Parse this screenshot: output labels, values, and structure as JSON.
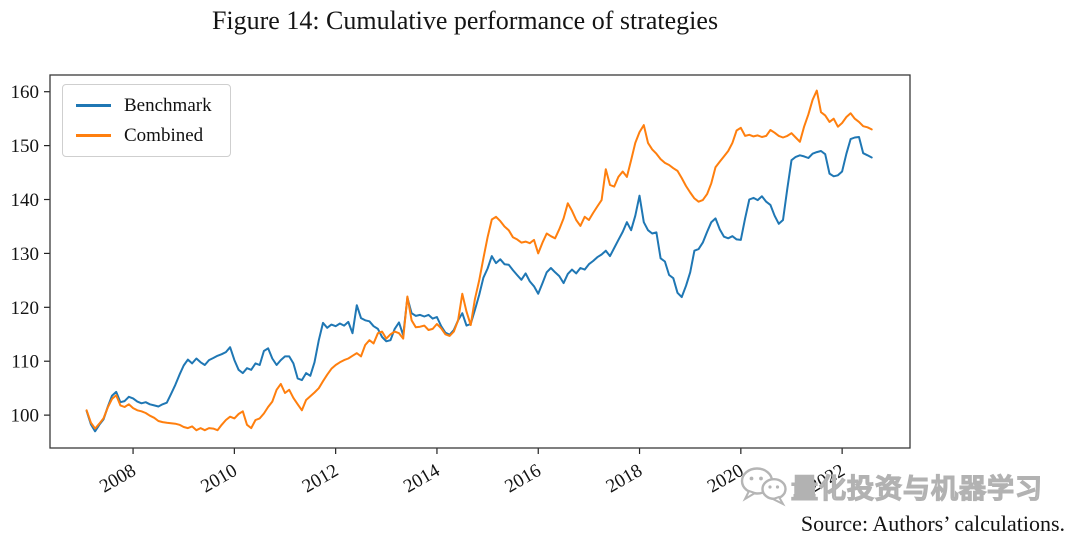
{
  "figure": {
    "title": "Figure 14: Cumulative performance of strategies",
    "source_note": "Source: Authors’ calculations.",
    "watermark_text": "量化投资与机器学习"
  },
  "chart_data": {
    "type": "line",
    "title": "Figure 14: Cumulative performance of strategies",
    "xlabel": "",
    "ylabel": "",
    "grid": false,
    "legend_position": "upper left",
    "xlim": [
      2006.36,
      2023.34
    ],
    "ylim": [
      93.9,
      163.1
    ],
    "x_ticks": [
      2008,
      2010,
      2012,
      2014,
      2016,
      2018,
      2020,
      2022
    ],
    "x_tick_rotation": 30,
    "y_ticks": [
      100,
      110,
      120,
      130,
      140,
      150,
      160
    ],
    "x_start": 2007.0833,
    "x_step": 0.0833333,
    "series": [
      {
        "name": "Benchmark",
        "color": "#1f77b4",
        "values": [
          100.8,
          98.3,
          97.0,
          98.2,
          99.2,
          101.5,
          103.6,
          104.3,
          102.4,
          102.6,
          103.4,
          103.1,
          102.5,
          102.2,
          102.4,
          102.0,
          101.8,
          101.6,
          102.0,
          102.3,
          103.9,
          105.6,
          107.5,
          109.2,
          110.3,
          109.6,
          110.5,
          109.8,
          109.3,
          110.2,
          110.6,
          111.0,
          111.3,
          111.7,
          112.6,
          110.2,
          108.4,
          107.8,
          108.7,
          108.4,
          109.6,
          109.3,
          111.9,
          112.4,
          110.5,
          109.3,
          110.2,
          110.9,
          110.9,
          109.6,
          106.8,
          106.5,
          107.8,
          107.3,
          109.8,
          113.9,
          117.1,
          116.2,
          116.8,
          116.5,
          117.0,
          116.6,
          117.3,
          115.2,
          120.4,
          118.0,
          117.6,
          117.4,
          116.5,
          116.0,
          114.5,
          113.7,
          113.9,
          116.0,
          117.2,
          114.8,
          121.8,
          118.9,
          118.4,
          118.6,
          118.3,
          118.6,
          117.9,
          118.2,
          116.5,
          115.3,
          114.9,
          115.8,
          117.6,
          118.9,
          116.6,
          116.9,
          119.5,
          122.3,
          125.5,
          127.2,
          129.5,
          128.2,
          128.9,
          128.0,
          127.9,
          126.9,
          126.0,
          125.1,
          126.3,
          124.8,
          123.9,
          122.5,
          124.5,
          126.5,
          127.3,
          126.5,
          125.8,
          124.5,
          126.2,
          127.0,
          126.3,
          127.3,
          127.0,
          128.0,
          128.6,
          129.3,
          129.8,
          130.5,
          129.5,
          131.0,
          132.5,
          134.0,
          135.8,
          134.3,
          137.0,
          140.7,
          135.8,
          134.3,
          133.7,
          133.9,
          129.1,
          128.5,
          126.0,
          125.4,
          122.7,
          121.9,
          124.0,
          126.5,
          130.5,
          130.8,
          132.0,
          134.0,
          135.8,
          136.5,
          134.5,
          133.1,
          132.8,
          133.2,
          132.6,
          132.5,
          136.5,
          140.0,
          140.3,
          139.9,
          140.6,
          139.6,
          139.0,
          137.0,
          135.5,
          136.2,
          142.0,
          147.3,
          147.9,
          148.2,
          148.0,
          147.7,
          148.5,
          148.8,
          149.0,
          148.4,
          144.8,
          144.3,
          144.5,
          145.2,
          148.5,
          151.2,
          151.5,
          151.6,
          148.6,
          148.2,
          147.8
        ]
      },
      {
        "name": "Combined",
        "color": "#ff7f0e",
        "values": [
          100.9,
          98.6,
          97.5,
          98.4,
          99.4,
          101.4,
          103.0,
          103.7,
          101.8,
          101.5,
          102.0,
          101.3,
          100.9,
          100.7,
          100.4,
          99.9,
          99.5,
          98.9,
          98.7,
          98.6,
          98.5,
          98.4,
          98.2,
          97.8,
          97.6,
          97.9,
          97.2,
          97.6,
          97.2,
          97.6,
          97.5,
          97.2,
          98.2,
          99.1,
          99.7,
          99.4,
          100.2,
          100.7,
          98.2,
          97.6,
          99.1,
          99.4,
          100.3,
          101.5,
          102.5,
          104.7,
          105.8,
          104.1,
          104.7,
          103.2,
          102.0,
          100.9,
          102.8,
          103.5,
          104.2,
          105.0,
          106.3,
          107.5,
          108.6,
          109.3,
          109.8,
          110.2,
          110.5,
          111.0,
          111.5,
          110.9,
          113.0,
          113.9,
          113.3,
          115.2,
          115.5,
          114.2,
          115.0,
          115.5,
          115.2,
          114.2,
          122.0,
          117.6,
          116.3,
          116.4,
          116.6,
          115.8,
          116.0,
          116.9,
          116.1,
          115.0,
          114.7,
          115.5,
          117.6,
          122.5,
          119.2,
          116.7,
          121.5,
          125.0,
          129.1,
          133.0,
          136.3,
          136.8,
          136.0,
          135.0,
          134.3,
          133.0,
          132.6,
          132.0,
          132.2,
          131.9,
          132.5,
          130.0,
          132.0,
          133.7,
          133.2,
          132.8,
          134.5,
          136.5,
          139.3,
          137.9,
          136.2,
          135.1,
          136.8,
          136.2,
          137.5,
          138.7,
          139.9,
          145.6,
          142.7,
          142.4,
          144.2,
          145.2,
          144.2,
          147.3,
          150.5,
          152.5,
          153.8,
          150.5,
          149.3,
          148.5,
          147.5,
          146.8,
          146.4,
          145.8,
          145.3,
          144.0,
          142.5,
          141.3,
          140.2,
          139.6,
          139.9,
          141.0,
          143.0,
          146.0,
          147.0,
          148.0,
          149.0,
          150.5,
          152.8,
          153.3,
          151.8,
          152.0,
          151.7,
          151.9,
          151.6,
          151.8,
          152.9,
          152.4,
          151.8,
          151.5,
          151.8,
          152.3,
          151.5,
          150.7,
          153.5,
          155.8,
          158.5,
          160.2,
          156.2,
          155.6,
          154.4,
          155.0,
          153.5,
          154.2,
          155.3,
          156.0,
          155.0,
          154.4,
          153.6,
          153.4,
          153.0
        ]
      }
    ]
  }
}
